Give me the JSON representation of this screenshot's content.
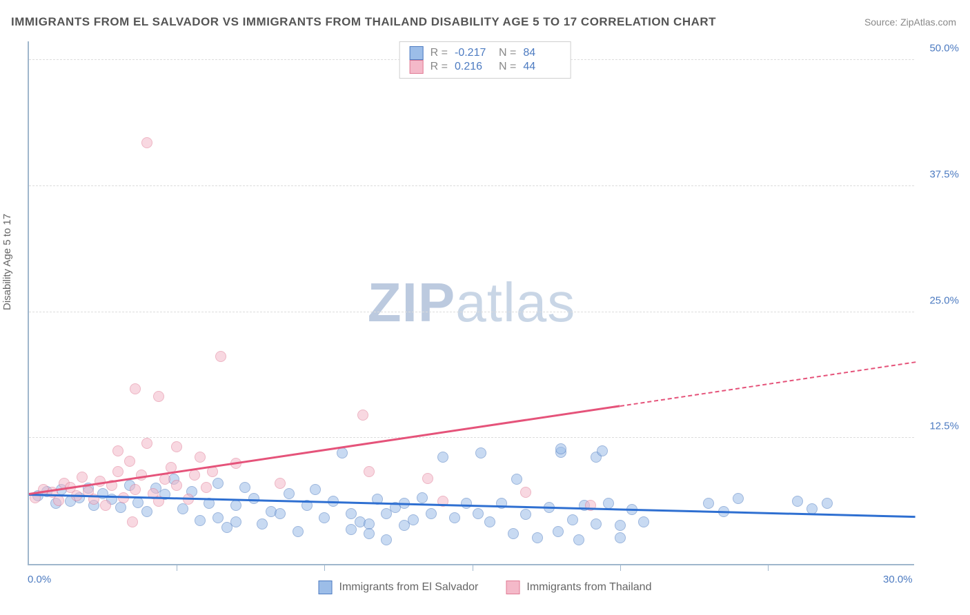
{
  "title": "IMMIGRANTS FROM EL SALVADOR VS IMMIGRANTS FROM THAILAND DISABILITY AGE 5 TO 17 CORRELATION CHART",
  "source_prefix": "Source: ",
  "source_site": "ZipAtlas.com",
  "ylabel": "Disability Age 5 to 17",
  "watermark_a": "ZIP",
  "watermark_b": "atlas",
  "chart": {
    "type": "scatter",
    "xlim": [
      0,
      30
    ],
    "ylim": [
      0,
      52
    ],
    "xtick_step": 5,
    "gridlines_y": [
      12.5,
      25.0,
      37.5,
      50.0
    ],
    "ytick_labels": [
      "12.5%",
      "25.0%",
      "37.5%",
      "50.0%"
    ],
    "xlabel_start": "0.0%",
    "xlabel_end": "30.0%",
    "background_color": "#ffffff",
    "grid_color": "#dcdcdc",
    "axis_color": "#9fb6cc",
    "tick_label_color": "#4d7bc1",
    "point_radius": 8,
    "point_opacity": 0.55,
    "series": [
      {
        "name": "Immigrants from El Salvador",
        "fill": "#9cbde8",
        "stroke": "#4d7bc1",
        "stats": {
          "R": "-0.217",
          "N": "84"
        },
        "trend": {
          "x1": 0,
          "y1": 6.8,
          "x2": 30,
          "y2": 4.6,
          "color": "#2e6fd1",
          "dash_from_x": null
        },
        "points": [
          [
            0.3,
            6.8
          ],
          [
            0.6,
            7.2
          ],
          [
            0.9,
            6.0
          ],
          [
            1.1,
            7.4
          ],
          [
            1.4,
            6.2
          ],
          [
            1.7,
            6.6
          ],
          [
            2.0,
            7.5
          ],
          [
            2.2,
            5.8
          ],
          [
            2.5,
            7.0
          ],
          [
            2.8,
            6.4
          ],
          [
            3.1,
            5.6
          ],
          [
            3.4,
            7.8
          ],
          [
            3.7,
            6.1
          ],
          [
            4.0,
            5.2
          ],
          [
            4.3,
            7.5
          ],
          [
            4.6,
            6.9
          ],
          [
            4.9,
            8.4
          ],
          [
            5.2,
            5.5
          ],
          [
            5.5,
            7.2
          ],
          [
            5.8,
            4.3
          ],
          [
            6.1,
            6.0
          ],
          [
            6.4,
            8.0
          ],
          [
            6.4,
            4.6
          ],
          [
            6.7,
            3.6
          ],
          [
            7.0,
            5.8
          ],
          [
            7.3,
            7.6
          ],
          [
            7.0,
            4.2
          ],
          [
            7.6,
            6.5
          ],
          [
            7.9,
            4.0
          ],
          [
            8.2,
            5.2
          ],
          [
            8.5,
            5.0
          ],
          [
            8.8,
            7.0
          ],
          [
            9.1,
            3.2
          ],
          [
            9.4,
            5.8
          ],
          [
            9.7,
            7.4
          ],
          [
            10.0,
            4.6
          ],
          [
            10.3,
            6.2
          ],
          [
            10.6,
            11.0
          ],
          [
            10.9,
            3.4
          ],
          [
            10.9,
            5.0
          ],
          [
            11.2,
            4.2
          ],
          [
            11.5,
            4.0
          ],
          [
            11.8,
            6.4
          ],
          [
            11.5,
            3.0
          ],
          [
            12.1,
            5.0
          ],
          [
            12.1,
            2.4
          ],
          [
            12.4,
            5.6
          ],
          [
            12.7,
            3.8
          ],
          [
            12.7,
            6.0
          ],
          [
            13.0,
            4.4
          ],
          [
            13.3,
            6.6
          ],
          [
            13.6,
            5.0
          ],
          [
            14.0,
            10.6
          ],
          [
            14.4,
            4.6
          ],
          [
            14.8,
            6.0
          ],
          [
            15.2,
            5.0
          ],
          [
            15.3,
            11.0
          ],
          [
            15.6,
            4.2
          ],
          [
            16.0,
            6.0
          ],
          [
            16.4,
            3.0
          ],
          [
            16.5,
            8.4
          ],
          [
            16.8,
            4.9
          ],
          [
            17.2,
            2.6
          ],
          [
            17.6,
            5.6
          ],
          [
            17.9,
            3.2
          ],
          [
            18.0,
            11.1
          ],
          [
            18.0,
            11.4
          ],
          [
            18.4,
            4.4
          ],
          [
            18.6,
            2.4
          ],
          [
            18.8,
            5.8
          ],
          [
            19.2,
            4.0
          ],
          [
            19.6,
            6.0
          ],
          [
            19.2,
            10.6
          ],
          [
            19.4,
            11.2
          ],
          [
            20.0,
            3.8
          ],
          [
            20.0,
            2.6
          ],
          [
            20.4,
            5.4
          ],
          [
            20.8,
            4.2
          ],
          [
            23.0,
            6.0
          ],
          [
            23.5,
            5.2
          ],
          [
            24.0,
            6.5
          ],
          [
            26.0,
            6.2
          ],
          [
            26.5,
            5.5
          ],
          [
            27.0,
            6.0
          ]
        ]
      },
      {
        "name": "Immigrants from Thailand",
        "fill": "#f4b9c9",
        "stroke": "#e07a94",
        "stats": {
          "R": "0.216",
          "N": "44"
        },
        "trend": {
          "x1": 0,
          "y1": 6.9,
          "x2": 30,
          "y2": 20.0,
          "color": "#e5537a",
          "dash_from_x": 20
        },
        "points": [
          [
            0.2,
            6.6
          ],
          [
            0.5,
            7.4
          ],
          [
            0.8,
            7.1
          ],
          [
            1.0,
            6.3
          ],
          [
            1.2,
            8.0
          ],
          [
            1.4,
            7.6
          ],
          [
            1.6,
            6.8
          ],
          [
            1.8,
            8.6
          ],
          [
            2.0,
            7.2
          ],
          [
            2.2,
            6.4
          ],
          [
            2.4,
            8.2
          ],
          [
            2.6,
            5.8
          ],
          [
            2.8,
            7.8
          ],
          [
            3.0,
            9.2
          ],
          [
            3.0,
            11.2
          ],
          [
            3.2,
            6.6
          ],
          [
            3.4,
            10.2
          ],
          [
            3.5,
            4.2
          ],
          [
            3.6,
            7.4
          ],
          [
            3.6,
            17.4
          ],
          [
            3.8,
            8.8
          ],
          [
            4.0,
            12.0
          ],
          [
            4.0,
            41.8
          ],
          [
            4.2,
            7.0
          ],
          [
            4.4,
            6.2
          ],
          [
            4.4,
            16.6
          ],
          [
            4.6,
            8.4
          ],
          [
            4.8,
            9.6
          ],
          [
            5.0,
            7.8
          ],
          [
            5.0,
            11.6
          ],
          [
            5.4,
            6.4
          ],
          [
            5.6,
            8.8
          ],
          [
            5.8,
            10.6
          ],
          [
            6.0,
            7.6
          ],
          [
            6.2,
            9.2
          ],
          [
            6.5,
            20.6
          ],
          [
            7.0,
            10.0
          ],
          [
            8.5,
            8.0
          ],
          [
            11.3,
            14.8
          ],
          [
            11.5,
            9.2
          ],
          [
            13.5,
            8.5
          ],
          [
            16.8,
            7.1
          ],
          [
            14.0,
            6.2
          ],
          [
            19.0,
            5.8
          ]
        ]
      }
    ],
    "legend": {
      "series1_label": "Immigrants from El Salvador",
      "series2_label": "Immigrants from Thailand"
    },
    "stat_text": {
      "R": "R =",
      "N": "N ="
    }
  }
}
